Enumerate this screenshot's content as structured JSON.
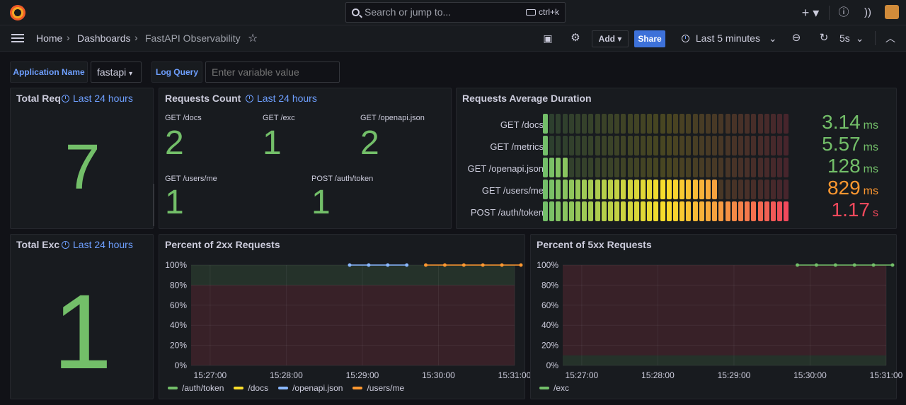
{
  "topbar": {
    "search_placeholder": "Search or jump to...",
    "search_shortcut": "ctrl+k",
    "icons": [
      "grafana-logo-icon",
      "search-icon",
      "plus-icon",
      "help-icon",
      "rss-icon",
      "avatar"
    ]
  },
  "nav": {
    "breadcrumbs": [
      "Home",
      "Dashboards",
      "FastAPI Observability"
    ],
    "add_label": "Add",
    "share_label": "Share",
    "time_range": "Last 5 minutes",
    "refresh_interval": "5s"
  },
  "variables": {
    "app_label": "Application Name",
    "app_value": "fastapi",
    "query_label": "Log Query",
    "query_placeholder": "Enter variable value"
  },
  "colors": {
    "green": "#73bf69",
    "orange": "#ff9830",
    "red": "#f2495c",
    "blue": "#6e9fff",
    "yellow": "#fade2a",
    "light_blue": "#8ab8ff"
  },
  "panels": {
    "total_requests": {
      "title": "Total Req",
      "time": "Last 24 hours",
      "value": "7"
    },
    "requests_count": {
      "title": "Requests Count",
      "time": "Last 24 hours",
      "stats": [
        {
          "label": "GET /docs",
          "value": "2"
        },
        {
          "label": "GET /exc",
          "value": "1"
        },
        {
          "label": "GET /openapi.json",
          "value": "2"
        },
        {
          "label": "GET /users/me",
          "value": "1"
        },
        {
          "label": "POST /auth/token",
          "value": "1"
        }
      ]
    },
    "avg_duration": {
      "title": "Requests Average Duration",
      "rows": [
        {
          "label": "GET /docs",
          "value": "3.14",
          "unit": "ms",
          "lit": 1,
          "color": "#73bf69"
        },
        {
          "label": "GET /metrics",
          "value": "5.57",
          "unit": "ms",
          "lit": 1,
          "color": "#73bf69"
        },
        {
          "label": "GET /openapi.json",
          "value": "128",
          "unit": "ms",
          "lit": 4,
          "color": "#73bf69"
        },
        {
          "label": "GET /users/me",
          "value": "829",
          "unit": "ms",
          "lit": 27,
          "color": "#ff9830"
        },
        {
          "label": "POST /auth/token",
          "value": "1.17",
          "unit": "s",
          "lit": 38,
          "color": "#f2495c"
        }
      ],
      "total_segments": 38
    },
    "total_exceptions": {
      "title": "Total Exc",
      "time": "Last 24 hours",
      "value": "1"
    },
    "pct_2xx": {
      "title": "Percent of 2xx Requests"
    },
    "pct_5xx": {
      "title": "Percent of 5xx Requests"
    }
  },
  "chart_data": [
    {
      "type": "line",
      "title": "Percent of 2xx Requests",
      "y_ticks": [
        "0%",
        "20%",
        "40%",
        "60%",
        "80%",
        "100%"
      ],
      "x_ticks": [
        "15:27:00",
        "15:28:00",
        "15:29:00",
        "15:30:00",
        "15:31:00"
      ],
      "ylim": [
        0,
        100
      ],
      "thresholds": [
        {
          "from": 0,
          "to": 80,
          "color": "red"
        },
        {
          "from": 80,
          "to": 100,
          "color": "green"
        }
      ],
      "series": [
        {
          "name": "/auth/token",
          "color": "#73bf69",
          "points": []
        },
        {
          "name": "/docs",
          "color": "#fade2a",
          "points": []
        },
        {
          "name": "/openapi.json",
          "color": "#8ab8ff",
          "points": [
            [
              "15:28:50",
              100
            ],
            [
              "15:29:05",
              100
            ],
            [
              "15:29:20",
              100
            ],
            [
              "15:29:35",
              100
            ]
          ]
        },
        {
          "name": "/users/me",
          "color": "#ff9830",
          "points": [
            [
              "15:29:50",
              100
            ],
            [
              "15:30:05",
              100
            ],
            [
              "15:30:20",
              100
            ],
            [
              "15:30:35",
              100
            ],
            [
              "15:30:50",
              100
            ],
            [
              "15:31:05",
              100
            ]
          ]
        }
      ]
    },
    {
      "type": "line",
      "title": "Percent of 5xx Requests",
      "y_ticks": [
        "0%",
        "20%",
        "40%",
        "60%",
        "80%",
        "100%"
      ],
      "x_ticks": [
        "15:27:00",
        "15:28:00",
        "15:29:00",
        "15:30:00",
        "15:31:00"
      ],
      "ylim": [
        0,
        100
      ],
      "thresholds": [
        {
          "from": 0,
          "to": 10,
          "color": "green"
        },
        {
          "from": 10,
          "to": 100,
          "color": "red"
        }
      ],
      "series": [
        {
          "name": "/exc",
          "color": "#73bf69",
          "points": [
            [
              "15:29:50",
              100
            ],
            [
              "15:30:05",
              100
            ],
            [
              "15:30:20",
              100
            ],
            [
              "15:30:35",
              100
            ],
            [
              "15:30:50",
              100
            ],
            [
              "15:31:05",
              100
            ]
          ]
        }
      ]
    }
  ]
}
